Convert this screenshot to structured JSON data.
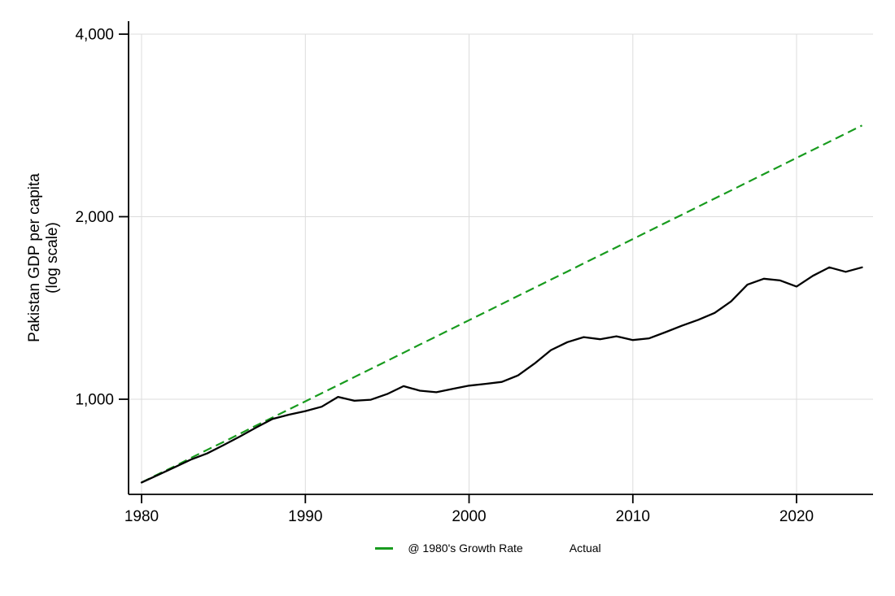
{
  "figure": {
    "background": "#ffffff",
    "y_axis_title_line1": "Pakistan GDP per capita",
    "y_axis_title_line2": "(log scale)"
  },
  "colors": {
    "growth_line": "#189b1e",
    "actual_line": "#000000",
    "grid": "#dcdcdc",
    "axis": "#000000",
    "tick_label": "#000000"
  },
  "legend": {
    "position": "bottom-center",
    "entries": [
      {
        "label": "@ 1980's Growth Rate",
        "key": "green-dash"
      },
      {
        "label": "Actual",
        "key": "none"
      }
    ]
  },
  "chart_data": {
    "type": "line",
    "title": "",
    "xlabel": "",
    "ylabel": "Pakistan GDP per capita (log scale)",
    "y_scale": "log",
    "grid": true,
    "legend_position": "bottom",
    "x_range": [
      1979.2,
      2024.7
    ],
    "y_axis_range": [
      690,
      4250
    ],
    "x_ticks": [
      {
        "value": 1980,
        "label": "1980"
      },
      {
        "value": 1990,
        "label": "1990"
      },
      {
        "value": 2000,
        "label": "2000"
      },
      {
        "value": 2010,
        "label": "2010"
      },
      {
        "value": 2020,
        "label": "2020"
      }
    ],
    "y_ticks": [
      {
        "value": 1000,
        "label": "1,000"
      },
      {
        "value": 2000,
        "label": "2,000"
      },
      {
        "value": 4000,
        "label": "4,000"
      }
    ],
    "x": [
      1980,
      1981,
      1982,
      1983,
      1984,
      1985,
      1986,
      1987,
      1988,
      1989,
      1990,
      1991,
      1992,
      1993,
      1994,
      1995,
      1996,
      1997,
      1998,
      1999,
      2000,
      2001,
      2002,
      2003,
      2004,
      2005,
      2006,
      2007,
      2008,
      2009,
      2010,
      2011,
      2012,
      2013,
      2014,
      2015,
      2016,
      2017,
      2018,
      2019,
      2020,
      2021,
      2022,
      2023,
      2024
    ],
    "series": [
      {
        "name": "@ 1980's Growth Rate",
        "style": "dashed",
        "color": "#189b1e",
        "values": [
          729,
          752,
          775,
          800,
          825,
          850,
          877,
          905,
          933,
          962,
          992,
          1023,
          1055,
          1088,
          1122,
          1157,
          1193,
          1231,
          1269,
          1309,
          1350,
          1392,
          1436,
          1481,
          1527,
          1575,
          1624,
          1675,
          1727,
          1781,
          1837,
          1895,
          1954,
          2015,
          2078,
          2143,
          2210,
          2279,
          2351,
          2424,
          2500,
          2578,
          2659,
          2742,
          2828
        ]
      },
      {
        "name": "Actual",
        "style": "solid",
        "color": "#000000",
        "values": [
          729,
          750,
          772,
          795,
          814,
          840,
          868,
          898,
          928,
          943,
          956,
          972,
          1009,
          994,
          998,
          1020,
          1051,
          1033,
          1027,
          1040,
          1053,
          1060,
          1068,
          1095,
          1145,
          1205,
          1242,
          1266,
          1256,
          1270,
          1252,
          1260,
          1290,
          1322,
          1352,
          1388,
          1450,
          1545,
          1580,
          1570,
          1534,
          1598,
          1650,
          1622,
          1650
        ]
      }
    ]
  }
}
